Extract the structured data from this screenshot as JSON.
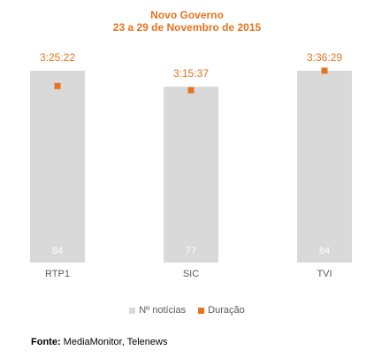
{
  "colors": {
    "bar": "#d9d9d9",
    "marker": "#e8731e",
    "bar_label": "#ffffff",
    "axis_label": "#595959",
    "title": "#e8731e"
  },
  "source": {
    "label": "Fonte:",
    "text": "MediaMonitor, Telenews"
  },
  "chart_data": {
    "type": "bar",
    "title": "Novo Governo",
    "subtitle": "23 a 29 de Novembro de 2015",
    "categories": [
      "RTP1",
      "SIC",
      "TVI"
    ],
    "series": [
      {
        "name": "Nº notícias",
        "type": "bar",
        "values": [
          84,
          77,
          84
        ],
        "labels": [
          "84",
          "77",
          "84"
        ]
      },
      {
        "name": "Duração",
        "type": "marker",
        "values": [
          "3:25:22",
          "3:15:37",
          "3:36:29"
        ],
        "labels": [
          "3:25:22",
          "3:15:37",
          "3:36:29"
        ]
      }
    ],
    "legend_position": "bottom",
    "grid": false
  }
}
